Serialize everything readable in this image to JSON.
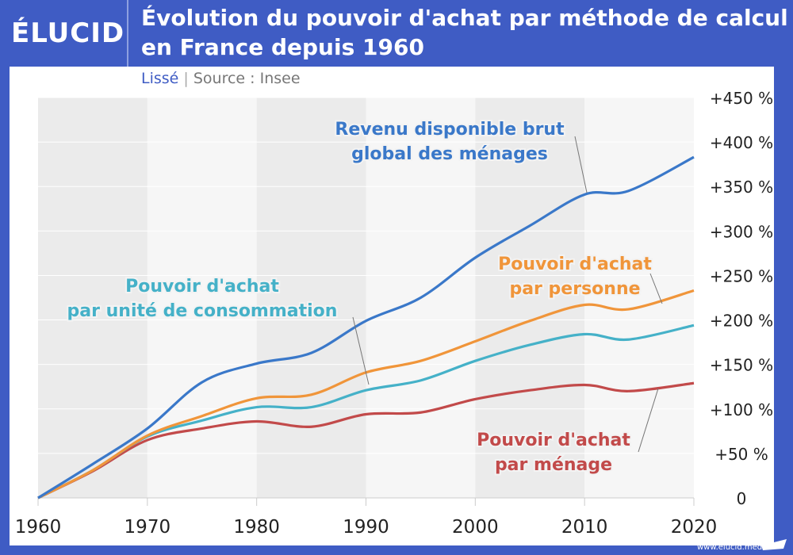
{
  "header": {
    "logo": "ÉLUCID",
    "title_line1": "Évolution du pouvoir d'achat par méthode de calcul",
    "title_line2": "en France depuis 1960",
    "subtitle_smoothed": "Lissé",
    "subtitle_sep": "|",
    "subtitle_source": "Source : Insee"
  },
  "footer": {
    "url": "www.elucid.media"
  },
  "chart_data": {
    "type": "line",
    "title": "Évolution du pouvoir d'achat par méthode de calcul en France depuis 1960",
    "x": [
      1960,
      1965,
      1970,
      1975,
      1980,
      1985,
      1990,
      1995,
      2000,
      2005,
      2010,
      2014,
      2020
    ],
    "xlim": [
      1960,
      2020
    ],
    "ylim": [
      0,
      450
    ],
    "x_ticks": [
      "1960",
      "1970",
      "1980",
      "1990",
      "2000",
      "2010",
      "2020"
    ],
    "y_ticks": [
      "0",
      "+50 %",
      "+100 %",
      "+150 %",
      "+200 %",
      "+250 %",
      "+300 %",
      "+350 %",
      "+400 %",
      "+450 %"
    ],
    "series": [
      {
        "name": "Revenu disponible brut global des ménages",
        "label1": "Revenu disponible brut",
        "label2": "global des ménages",
        "color": "#3a78c9",
        "values": [
          0,
          38,
          78,
          130,
          151,
          163,
          199,
          225,
          270,
          306,
          341,
          345,
          383
        ]
      },
      {
        "name": "Pouvoir d'achat par personne",
        "label1": "Pouvoir d'achat",
        "label2": "par personne",
        "color": "#f0953a",
        "values": [
          0,
          31,
          70,
          92,
          112,
          116,
          141,
          154,
          176,
          199,
          217,
          212,
          233
        ]
      },
      {
        "name": "Pouvoir d'achat par unité de consommation",
        "label1": "Pouvoir d'achat",
        "label2": "par unité de consommation",
        "color": "#45b1c8",
        "values": [
          0,
          31,
          69,
          87,
          102,
          102,
          121,
          132,
          154,
          172,
          184,
          178,
          194
        ]
      },
      {
        "name": "Pouvoir d'achat par ménage",
        "label1": "Pouvoir d'achat",
        "label2": "par ménage",
        "color": "#c24a4a",
        "values": [
          0,
          30,
          65,
          78,
          86,
          80,
          94,
          96,
          111,
          121,
          127,
          120,
          129
        ]
      }
    ]
  }
}
